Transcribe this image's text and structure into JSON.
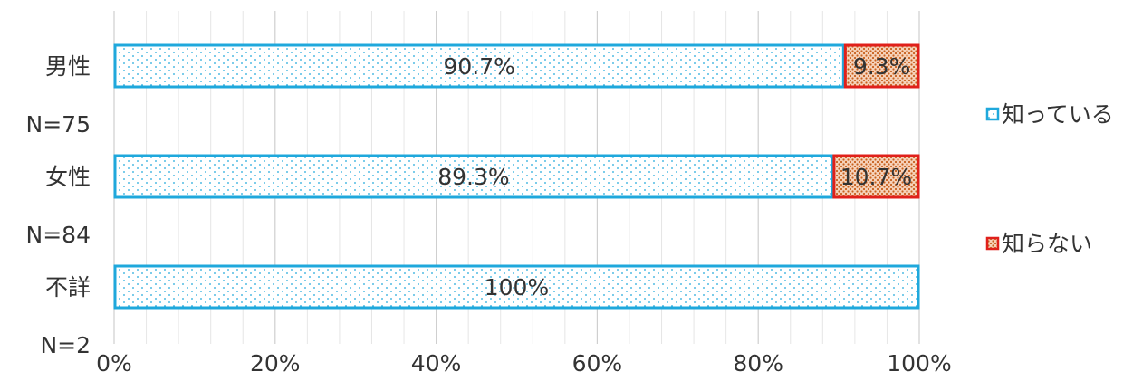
{
  "chart_data": {
    "type": "bar",
    "orientation": "horizontal",
    "stacked": "percent",
    "categories": [
      "男性",
      "女性",
      "不詳"
    ],
    "category_notes": [
      "N=75",
      "N=84",
      "N=2"
    ],
    "series": [
      {
        "name": "知っている",
        "values": [
          90.7,
          89.3,
          100
        ],
        "labels": [
          "90.7%",
          "89.3%",
          "100%"
        ],
        "color": "#1fa8dc",
        "pattern": "dotted-light-blue"
      },
      {
        "name": "知らない",
        "values": [
          9.3,
          10.7,
          0
        ],
        "labels": [
          "9.3%",
          "10.7%",
          ""
        ],
        "color": "#e0201b",
        "pattern": "dotted-orange"
      }
    ],
    "x_ticks": [
      "0%",
      "20%",
      "40%",
      "60%",
      "80%",
      "100%"
    ],
    "xlim": [
      0,
      100
    ],
    "grid": true,
    "legend_position": "right"
  }
}
